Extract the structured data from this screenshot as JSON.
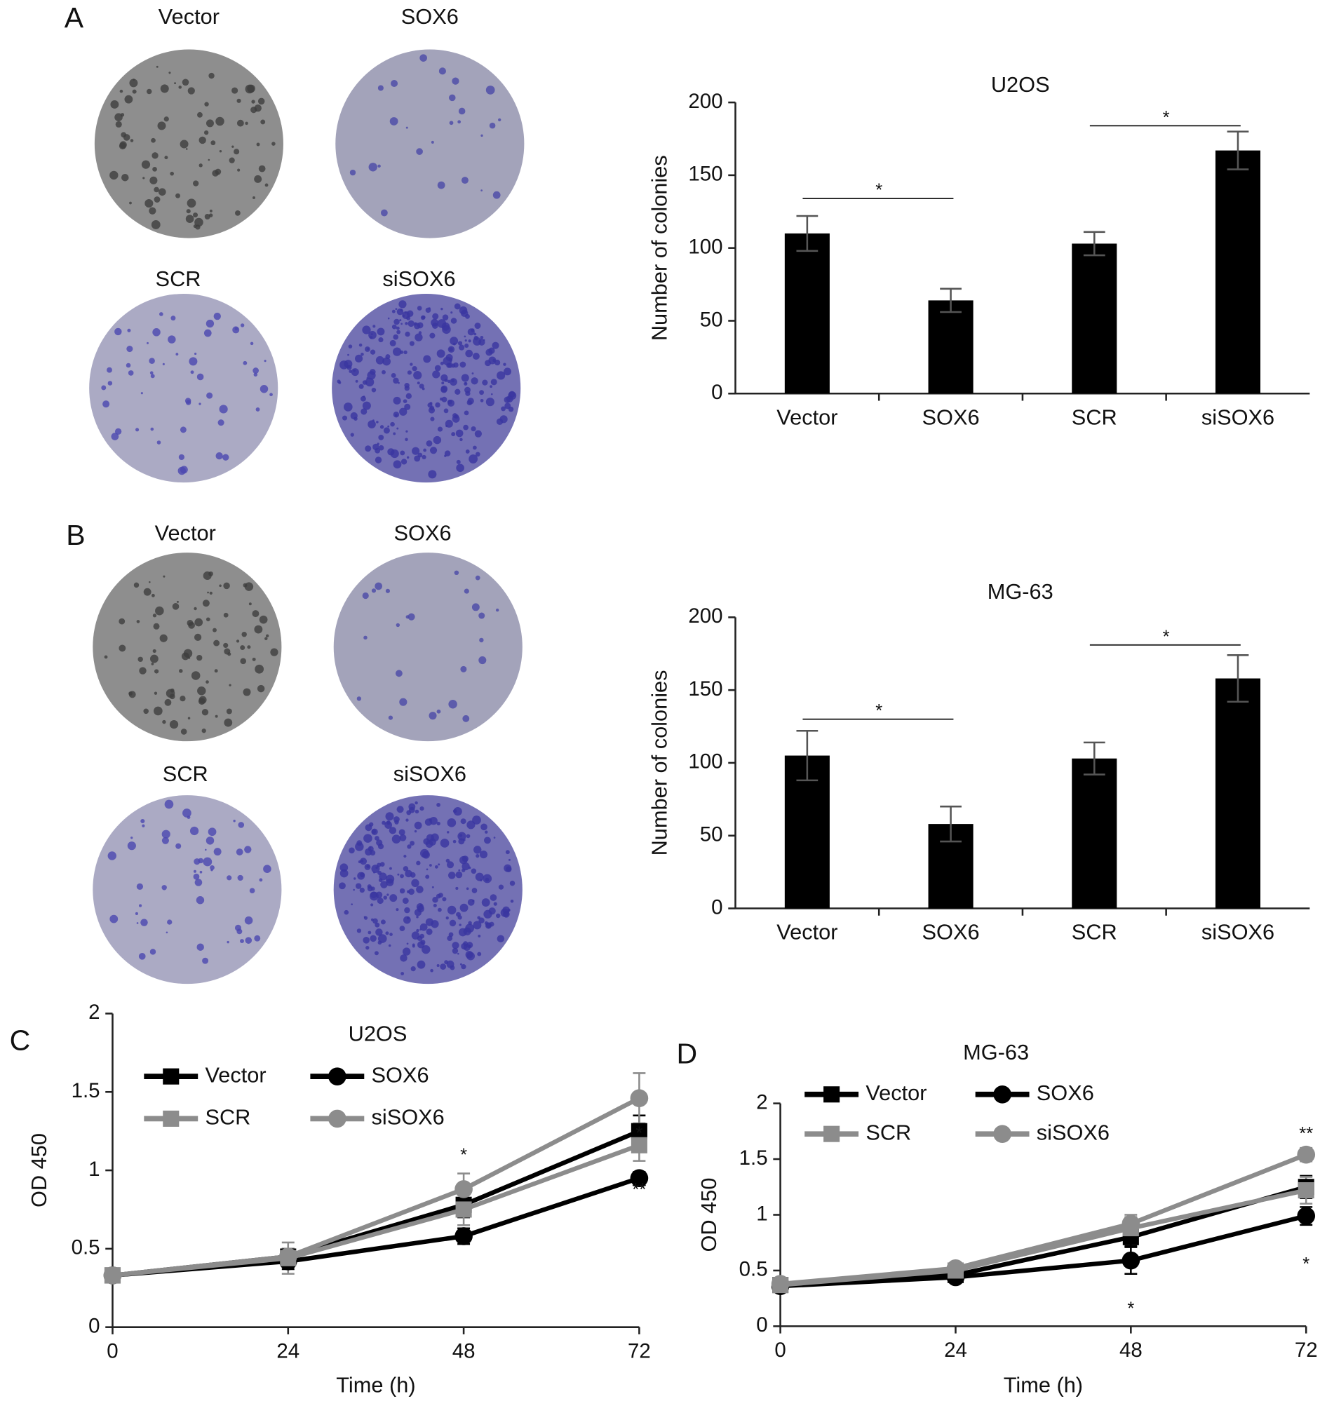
{
  "panels": [
    {
      "letter": "A",
      "photo_labels": [
        "Vector",
        "SOX6",
        "SCR",
        "siSOX6"
      ]
    },
    {
      "letter": "B",
      "photo_labels": [
        "Vector",
        "SOX6",
        "SCR",
        "siSOX6"
      ]
    },
    {
      "letter": "C"
    },
    {
      "letter": "D"
    }
  ],
  "chart_data": [
    {
      "type": "bar",
      "title": "U2OS",
      "y_label": "Number of colonies",
      "categories": [
        "Vector",
        "SOX6",
        "SCR",
        "siSOX6"
      ],
      "values": [
        110,
        64,
        103,
        167
      ],
      "errors": [
        12,
        8,
        8,
        13
      ],
      "color": "#000000",
      "ylim": [
        0,
        200
      ],
      "yticks": [
        0,
        50,
        100,
        150,
        200
      ],
      "annotations": [
        {
          "text": "*",
          "from": 0,
          "to": 1,
          "y": 134
        },
        {
          "text": "*",
          "from": 2,
          "to": 3,
          "y": 184
        }
      ]
    },
    {
      "type": "bar",
      "title": "MG-63",
      "y_label": "Number of colonies",
      "categories": [
        "Vector",
        "SOX6",
        "SCR",
        "siSOX6"
      ],
      "values": [
        105,
        58,
        103,
        158
      ],
      "errors": [
        17,
        12,
        11,
        16
      ],
      "color": "#000000",
      "ylim": [
        0,
        200
      ],
      "yticks": [
        0,
        50,
        100,
        150,
        200
      ],
      "annotations": [
        {
          "text": "*",
          "from": 0,
          "to": 1,
          "y": 130
        },
        {
          "text": "*",
          "from": 2,
          "to": 3,
          "y": 181
        }
      ]
    },
    {
      "type": "line",
      "title": "U2OS",
      "x_label": "Time (h)",
      "y_label": "OD 450",
      "x": [
        0,
        24,
        48,
        72
      ],
      "xlim": [
        0,
        72
      ],
      "xticks": [
        0,
        24,
        48,
        72
      ],
      "ylim": [
        0,
        2
      ],
      "yticks": [
        0,
        0.5,
        1,
        1.5,
        2
      ],
      "series": [
        {
          "name": "Vector",
          "color": "#000000",
          "marker": "square",
          "values": [
            0.33,
            0.45,
            0.78,
            1.25
          ],
          "errors": [
            0.03,
            0.05,
            0.08,
            0.1
          ]
        },
        {
          "name": "SOX6",
          "color": "#000000",
          "marker": "circle",
          "values": [
            0.33,
            0.42,
            0.58,
            0.95
          ],
          "errors": [
            0.03,
            0.05,
            0.05,
            0.04
          ]
        },
        {
          "name": "SCR",
          "color": "#8c8c8c",
          "marker": "square",
          "values": [
            0.33,
            0.44,
            0.75,
            1.16
          ],
          "errors": [
            0.03,
            0.1,
            0.1,
            0.1
          ]
        },
        {
          "name": "siSOX6",
          "color": "#8c8c8c",
          "marker": "circle",
          "values": [
            0.33,
            0.45,
            0.88,
            1.46
          ],
          "errors": [
            0.03,
            0.05,
            0.1,
            0.16
          ]
        }
      ],
      "annotations": [
        {
          "text": "*",
          "x": 48,
          "y": 1.09
        },
        {
          "text": "*",
          "x": 72,
          "y": 1.23
        },
        {
          "text": "**",
          "x": 72,
          "y": 0.87
        }
      ]
    },
    {
      "type": "line",
      "title": "MG-63",
      "x_label": "Time (h)",
      "y_label": "OD 450",
      "x": [
        0,
        24,
        48,
        72
      ],
      "xlim": [
        0,
        72
      ],
      "xticks": [
        0,
        24,
        48,
        72
      ],
      "ylim": [
        0,
        2
      ],
      "yticks": [
        0,
        0.5,
        1,
        1.5,
        2
      ],
      "series": [
        {
          "name": "Vector",
          "color": "#000000",
          "marker": "square",
          "values": [
            0.37,
            0.46,
            0.8,
            1.25
          ],
          "errors": [
            0.03,
            0.03,
            0.08,
            0.1
          ]
        },
        {
          "name": "SOX6",
          "color": "#000000",
          "marker": "circle",
          "values": [
            0.36,
            0.44,
            0.59,
            0.99
          ],
          "errors": [
            0.03,
            0.03,
            0.12,
            0.08
          ]
        },
        {
          "name": "SCR",
          "color": "#8c8c8c",
          "marker": "square",
          "values": [
            0.37,
            0.5,
            0.88,
            1.22
          ],
          "errors": [
            0.03,
            0.04,
            0.1,
            0.12
          ]
        },
        {
          "name": "siSOX6",
          "color": "#8c8c8c",
          "marker": "circle",
          "values": [
            0.38,
            0.52,
            0.92,
            1.54
          ],
          "errors": [
            0.03,
            0.04,
            0.08,
            0.06
          ]
        }
      ],
      "annotations": [
        {
          "text": "*",
          "x": 48,
          "y": 0.15
        },
        {
          "text": "**",
          "x": 72,
          "y": 1.72
        },
        {
          "text": "*",
          "x": 72,
          "y": 0.55
        }
      ]
    }
  ]
}
